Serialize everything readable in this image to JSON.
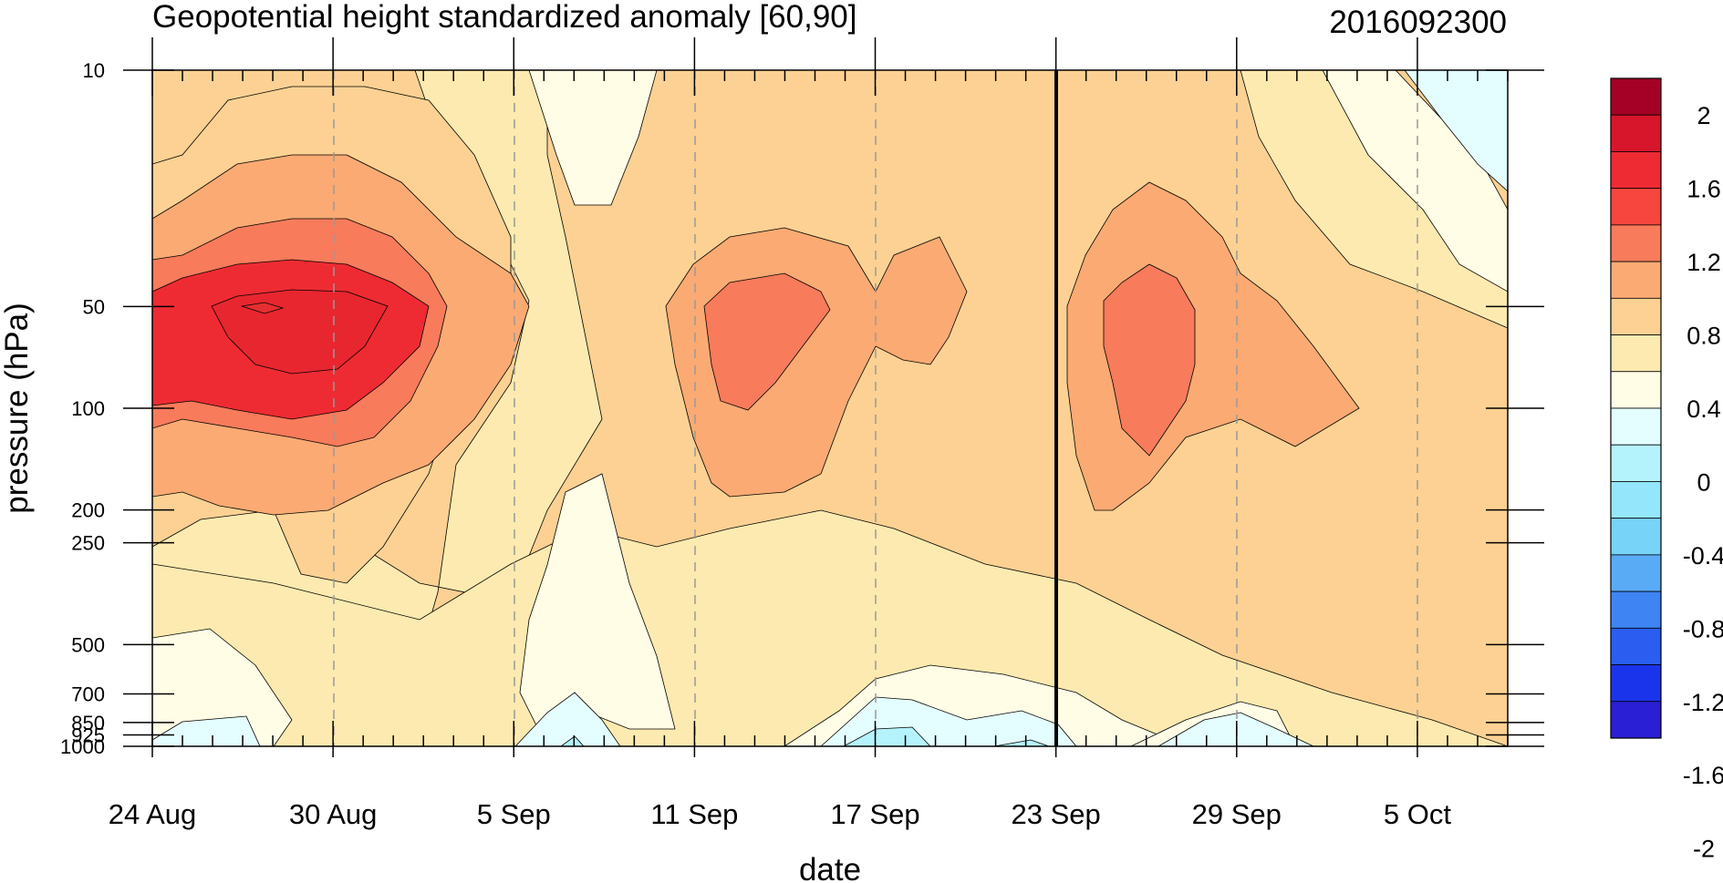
{
  "chart_data": {
    "type": "heatmap",
    "title": "Geopotential height standardized anomaly [60,90]",
    "subtitle": "2016092300",
    "xlabel": "date",
    "ylabel": "pressure (hPa)",
    "x_ticks": [
      {
        "day": 0,
        "label": "24 Aug"
      },
      {
        "day": 6,
        "label": "30 Aug"
      },
      {
        "day": 12,
        "label": "5 Sep"
      },
      {
        "day": 18,
        "label": "11 Sep"
      },
      {
        "day": 24,
        "label": "17 Sep"
      },
      {
        "day": 30,
        "label": "23 Sep"
      },
      {
        "day": 36,
        "label": "29 Sep"
      },
      {
        "day": 42,
        "label": "5 Oct"
      }
    ],
    "x_range": [
      "24 Aug",
      "8 Oct"
    ],
    "y_ticks": [
      {
        "p": 10,
        "label": "10"
      },
      {
        "p": 50,
        "label": "50"
      },
      {
        "p": 100,
        "label": "100"
      },
      {
        "p": 200,
        "label": "200"
      },
      {
        "p": 250,
        "label": "250"
      },
      {
        "p": 500,
        "label": "500"
      },
      {
        "p": 700,
        "label": "700"
      },
      {
        "p": 850,
        "label": "850"
      },
      {
        "p": 925,
        "label": "925"
      },
      {
        "p": 1000,
        "label": "1000"
      }
    ],
    "y_scale": "log",
    "y_range": [
      1000,
      10
    ],
    "vertical_marker": "23 Sep",
    "colorbar": {
      "labels": [
        "2",
        "1.6",
        "1.2",
        "0.8",
        "0.4",
        "0",
        "-0.4",
        "-0.8",
        "-1.2",
        "-1.6",
        "-2"
      ],
      "colors": [
        "#a50026",
        "#d7152b",
        "#ee2b33",
        "#f6463d",
        "#f87b5b",
        "#fbaa73",
        "#fcd193",
        "#fdeab0",
        "#fffde6",
        "#e4fdfe",
        "#b5f3fc",
        "#94e7fb",
        "#78d3f9",
        "#5aabf6",
        "#3f84f3",
        "#2a5df0",
        "#1a34ec",
        "#2a1fd4"
      ]
    },
    "features": [
      {
        "type": "maximum",
        "center": "28 Aug",
        "pressure": 50,
        "value": 1.6
      },
      {
        "type": "maximum",
        "center": "13 Sep",
        "pressure": 70,
        "value": 1.2
      },
      {
        "type": "maximum",
        "center": "26 Sep",
        "pressure": 80,
        "value": 1.2
      },
      {
        "type": "minimum",
        "center": "7 Sep",
        "pressure": 20,
        "value": 0
      },
      {
        "type": "minimum",
        "center": "8 Oct",
        "pressure": 15,
        "value": -0.4
      }
    ]
  }
}
